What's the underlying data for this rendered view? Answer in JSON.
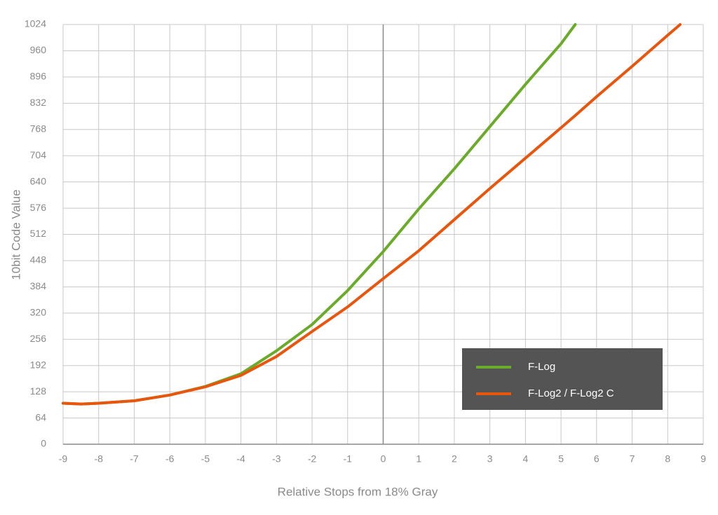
{
  "chart_data": {
    "type": "line",
    "x_label": "Relative Stops from 18% Gray",
    "y_label": "10bit Code Value",
    "x": [
      -9,
      -8.5,
      -8,
      -7,
      -6,
      -5,
      -4,
      -3,
      -2,
      -1,
      0,
      1,
      2,
      3,
      4,
      5,
      5.4,
      6,
      7,
      8,
      8.35
    ],
    "series": [
      {
        "name": "F-Log",
        "color": "#6aab2a",
        "values": [
          100,
          98,
          100,
          106,
          120,
          141,
          172,
          228,
          292,
          375,
          470,
          574,
          672,
          775,
          878,
          977,
          1024,
          null,
          null,
          null,
          null
        ]
      },
      {
        "name": "F-Log2 / F-Log2 C",
        "color": "#e8560e",
        "values": [
          100,
          98,
          100,
          106,
          120,
          140,
          168,
          214,
          275,
          335,
          404,
          472,
          548,
          624,
          698,
          772,
          802,
          848,
          922,
          998,
          1024
        ]
      }
    ],
    "xlim": [
      -9,
      9
    ],
    "xticks": [
      -9,
      -8,
      -7,
      -6,
      -5,
      -4,
      -3,
      -2,
      -1,
      0,
      1,
      2,
      3,
      4,
      5,
      6,
      7,
      8,
      9
    ],
    "ylim": [
      0,
      1024
    ],
    "yticks": [
      0,
      64,
      128,
      192,
      256,
      320,
      384,
      448,
      512,
      576,
      640,
      704,
      768,
      832,
      896,
      960,
      1024
    ],
    "grid": true,
    "legend": "lower right"
  }
}
